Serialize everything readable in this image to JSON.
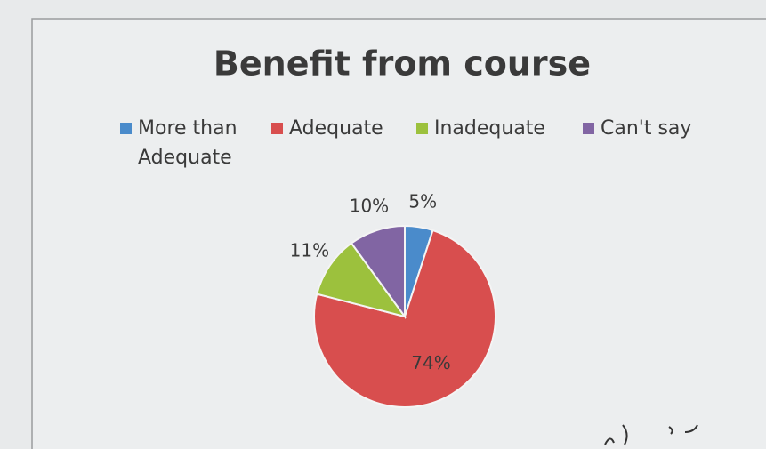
{
  "chart_data": {
    "type": "pie",
    "title": "Benefit from course",
    "categories": [
      "More than Adequate",
      "Adequate",
      "Inadequate",
      "Can't say"
    ],
    "values": [
      5,
      74,
      11,
      10
    ],
    "value_labels": [
      "5%",
      "74%",
      "11%",
      "10%"
    ],
    "colors": [
      "#4a8bcb",
      "#d84e4e",
      "#9cc13d",
      "#8165a3"
    ]
  }
}
